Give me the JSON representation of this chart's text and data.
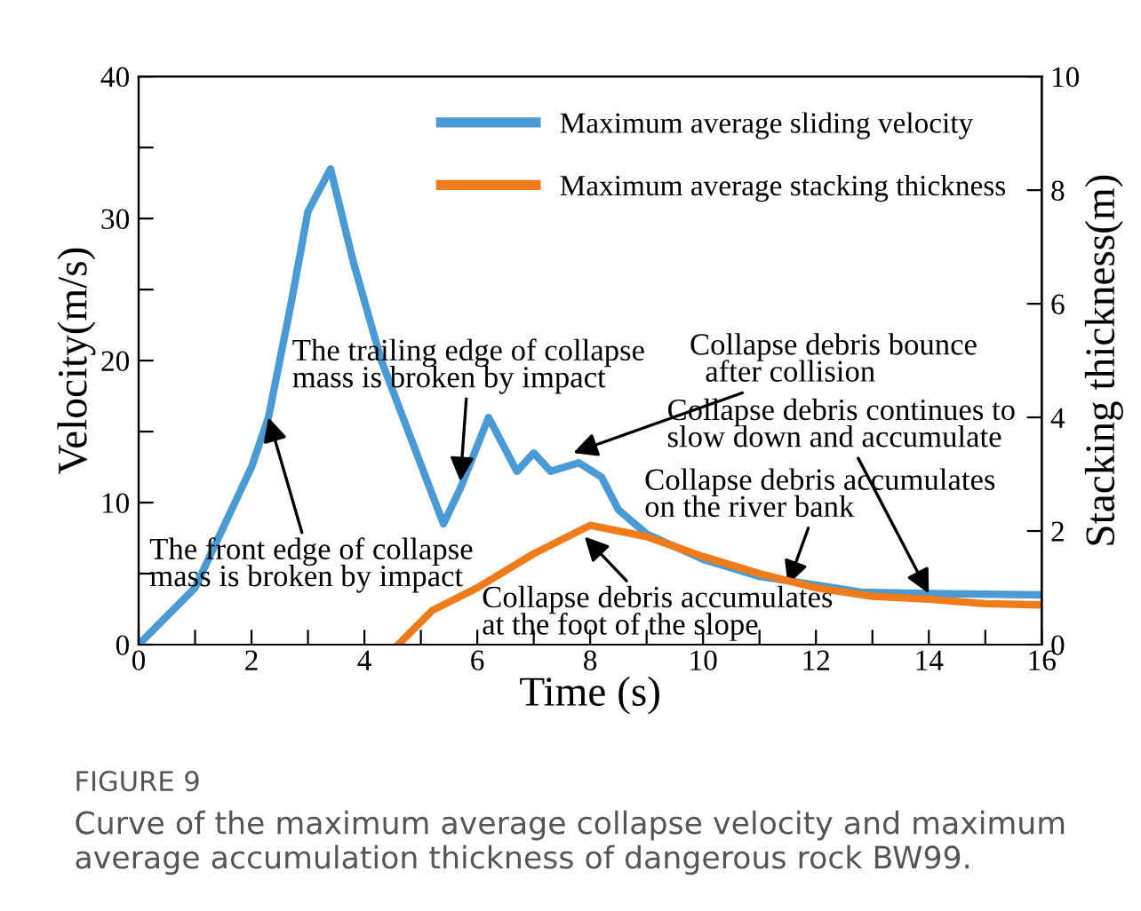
{
  "chart_data": {
    "type": "line",
    "xlabel": "Time (s)",
    "ylabel": "Velocity(m/s)",
    "y2label": "Stacking thickness(m)",
    "xlim": [
      0,
      16
    ],
    "xticks": [
      0,
      {
        "value": 1,
        "label": null
      },
      2,
      {
        "value": 3,
        "label": null
      },
      4,
      {
        "value": 5,
        "label": null
      },
      6,
      {
        "value": 7,
        "label": null
      },
      8,
      {
        "value": 9,
        "label": null
      },
      10,
      {
        "value": 11,
        "label": null
      },
      12,
      {
        "value": 13,
        "label": null
      },
      14,
      {
        "value": 15,
        "label": null
      },
      16
    ],
    "ylim": [
      0,
      40
    ],
    "yticks": [
      0,
      {
        "value": 5,
        "label": null
      },
      10,
      {
        "value": 15,
        "label": null
      },
      20,
      {
        "value": 25,
        "label": null
      },
      30,
      {
        "value": 35,
        "label": null
      },
      40
    ],
    "y2lim": [
      0,
      10
    ],
    "y2ticks": [
      0,
      2,
      4,
      6,
      8,
      10
    ],
    "grid": false,
    "legend": "top right",
    "marker": "none",
    "line_style": "solid",
    "series": [
      {
        "name": "Maximum average sliding velocity",
        "color": "#4a9ad6",
        "x": [
          0,
          1,
          2,
          2.3,
          2.7,
          3,
          3.4,
          3.8,
          4.3,
          5.4,
          5.7,
          6.2,
          6.7,
          7,
          7.3,
          7.8,
          8.2,
          8.5,
          9,
          10,
          11,
          12,
          12.8,
          14,
          16
        ],
        "values": [
          0,
          4,
          12.5,
          16,
          24,
          30.5,
          33.5,
          27,
          20,
          8.5,
          11,
          16,
          12.2,
          13.5,
          12.2,
          12.8,
          11.8,
          9.5,
          7.8,
          6,
          4.8,
          4.2,
          3.7,
          3.6,
          3.5
        ]
      },
      {
        "name": "Maximum average stacking thickness",
        "color": "#f07b1a",
        "axis": "y2",
        "x": [
          4.6,
          5.2,
          6,
          7,
          8,
          9,
          10,
          11,
          12,
          13,
          14,
          15,
          16
        ],
        "values": [
          0,
          0.6,
          1.0,
          1.6,
          2.1,
          1.9,
          1.55,
          1.25,
          1.0,
          0.85,
          0.8,
          0.72,
          0.7
        ]
      }
    ],
    "annotations": [
      {
        "text": "The front edge of collapse\nmass is broken by impact",
        "x": 2.3,
        "y": 16
      },
      {
        "text": "The trailing edge of collapse\nmass is broken by impact",
        "x": 5.7,
        "y": 11.5
      },
      {
        "text": "Collapse debris bounce\n  after collision",
        "x": 7.7,
        "y": 13.5
      },
      {
        "text": "Collapse debris continues to\nslow down and accumulate",
        "x": 14,
        "y": 3.6
      },
      {
        "text": "Collapse debris accumulates\non the river bank",
        "x": 11.5,
        "y": 4.2
      },
      {
        "text": "Collapse debris accumulates\nat the foot of the slope",
        "x": 7.9,
        "y": 7.6
      },
      "FIGURE 9",
      "Curve of the maximum average collapse velocity and maximum average accumulation thickness of dangerous rock BW99."
    ]
  }
}
